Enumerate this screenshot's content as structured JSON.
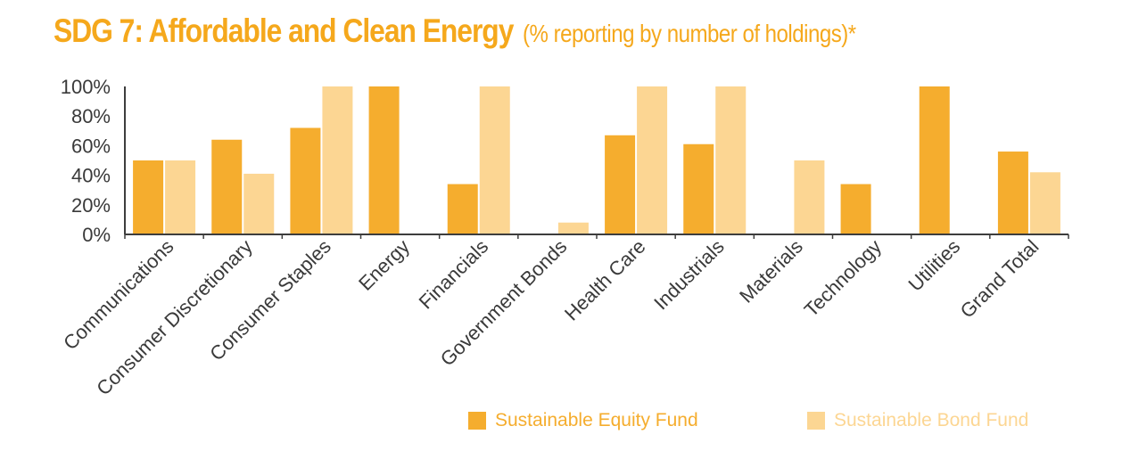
{
  "title": {
    "main": "SDG 7: Affordable and Clean Energy",
    "sub": "(% reporting by number of holdings)*"
  },
  "colors": {
    "equity": "#f5ad2e",
    "bond": "#fcd693",
    "title": "#f5a81c",
    "axis": "#3d3d3d",
    "text": "#3a3a3a"
  },
  "chart_data": {
    "type": "bar",
    "title": "SDG 7: Affordable and Clean Energy (% reporting by number of holdings)*",
    "categories": [
      "Communications",
      "Consumer Discretionary",
      "Consumer Staples",
      "Energy",
      "Financials",
      "Government Bonds",
      "Health Care",
      "Industrials",
      "Materials",
      "Technology",
      "Utilities",
      "Grand Total"
    ],
    "series": [
      {
        "name": "Sustainable Equity Fund",
        "values": [
          50,
          64,
          72,
          100,
          34,
          0,
          67,
          61,
          0,
          34,
          100,
          56
        ]
      },
      {
        "name": "Sustainable Bond Fund",
        "values": [
          50,
          41,
          100,
          0,
          100,
          8,
          100,
          100,
          50,
          0,
          0,
          42
        ]
      }
    ],
    "yticks": [
      "0%",
      "20%",
      "40%",
      "60%",
      "80%",
      "100%"
    ],
    "ylim": [
      0,
      100
    ],
    "xlabel": "",
    "ylabel": "",
    "legend_position": "bottom-right"
  }
}
